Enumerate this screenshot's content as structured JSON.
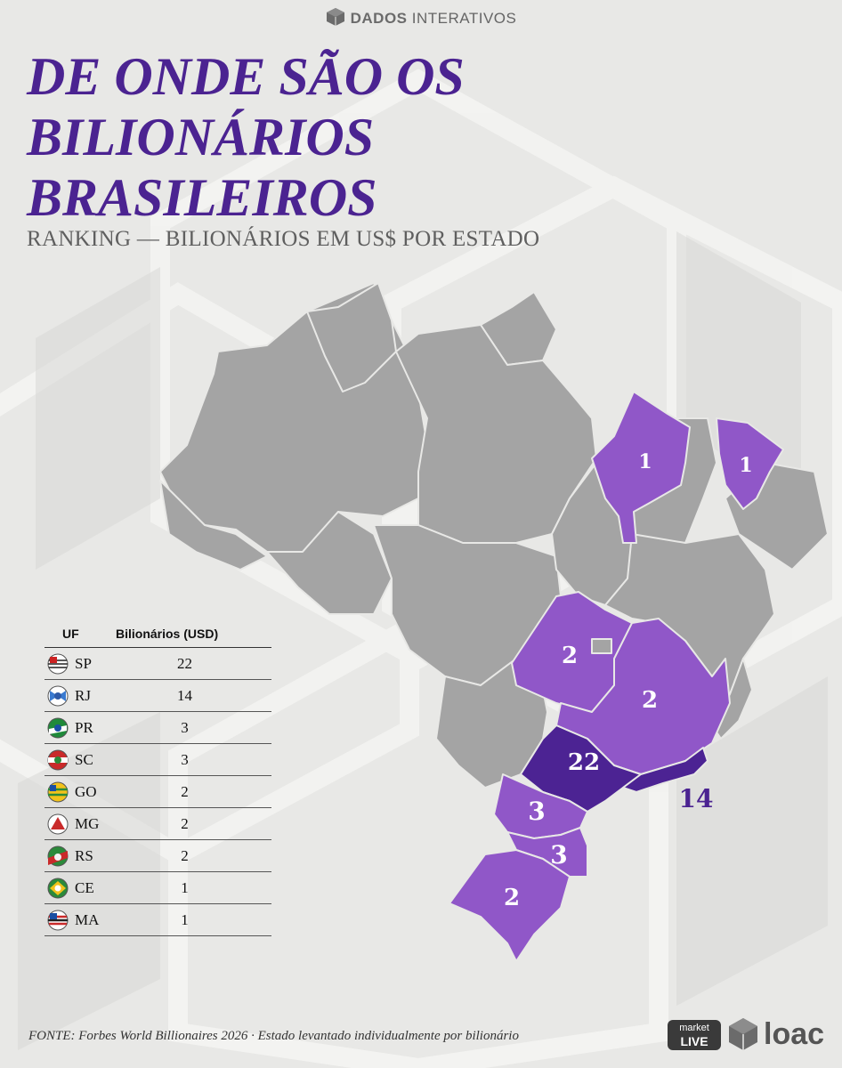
{
  "brand": {
    "name_bold": "DADOS",
    "name_rest": "INTERATIVOS",
    "icon": "cube-icon"
  },
  "title": [
    "DE ONDE SÃO OS",
    "BILIONÁRIOS",
    "BRASILEIROS"
  ],
  "subtitle": "RANKING — BILIONÁRIOS EM US$ POR ESTADO",
  "colors": {
    "title": "#4b2391",
    "gray_state": "#a4a4a4",
    "light_purple": "#9057c8",
    "dark_purple": "#4c2393",
    "background": "#e8e8e6"
  },
  "map": {
    "labels": {
      "MA": "1",
      "CE": "1",
      "GO": "2",
      "MG": "2",
      "SP": "22",
      "RJ": "14",
      "PR": "3",
      "SC": "3",
      "RS": "2"
    }
  },
  "table": {
    "headers": {
      "uf": "UF",
      "billionaires": "Bilionários (USD)"
    },
    "rows": [
      {
        "uf": "SP",
        "value": "22",
        "flag": "sp-flag-icon"
      },
      {
        "uf": "RJ",
        "value": "14",
        "flag": "rj-flag-icon"
      },
      {
        "uf": "PR",
        "value": "3",
        "flag": "pr-flag-icon"
      },
      {
        "uf": "SC",
        "value": "3",
        "flag": "sc-flag-icon"
      },
      {
        "uf": "GO",
        "value": "2",
        "flag": "go-flag-icon"
      },
      {
        "uf": "MG",
        "value": "2",
        "flag": "mg-flag-icon"
      },
      {
        "uf": "RS",
        "value": "2",
        "flag": "rs-flag-icon"
      },
      {
        "uf": "CE",
        "value": "1",
        "flag": "ce-flag-icon"
      },
      {
        "uf": "MA",
        "value": "1",
        "flag": "ma-flag-icon"
      }
    ]
  },
  "footer": "FONTE: Forbes World Billionaires 2026 · Estado levantado individualmente por bilionário",
  "logos": {
    "market_top": "market",
    "market_bottom": "LIVE",
    "loac": "loac"
  }
}
